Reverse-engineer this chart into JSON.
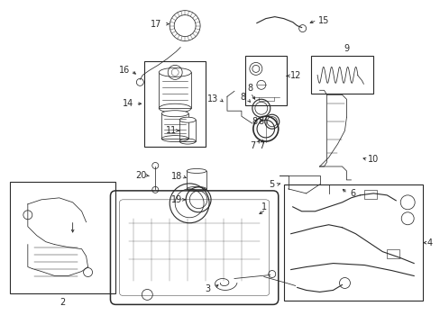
{
  "background_color": "#ffffff",
  "line_color": "#2a2a2a",
  "figsize": [
    4.89,
    3.6
  ],
  "dpi": 100,
  "lw_thin": 0.55,
  "lw_med": 0.8,
  "lw_thick": 1.1,
  "label_fs": 7.0
}
